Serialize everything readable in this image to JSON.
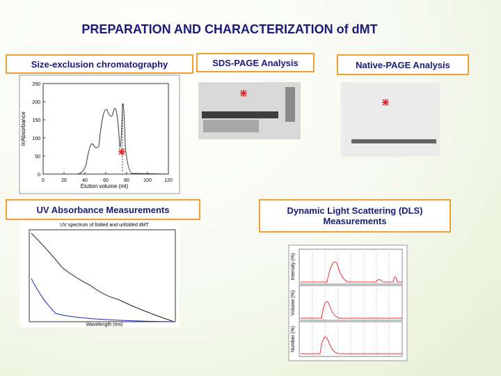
{
  "title": "PREPARATION AND CHARACTERIZATION of dMT",
  "sections": {
    "sec": "Size-exclusion chromatography",
    "sds": "SDS-PAGE Analysis",
    "native": "Native-PAGE Analysis",
    "uv": "UV Absorbance Measurements",
    "dls": "Dynamic Light Scattering (DLS) Measurements"
  },
  "sec_plot": {
    "ylabel": "mAbsorbance",
    "xlabel": "Elution volume (ml)",
    "yticks": [
      0,
      50,
      100,
      150,
      200,
      250
    ],
    "xticks": [
      0,
      20,
      40,
      60,
      80,
      100,
      120
    ]
  },
  "uv_plot": {
    "title": "UV spectrum of folded and unfolded dMT",
    "xlabel": "Wavelength (nm)"
  },
  "dls_plot": {
    "ylabels": [
      "Intensity (%)",
      "Volume (%)",
      "Number (%)"
    ]
  }
}
